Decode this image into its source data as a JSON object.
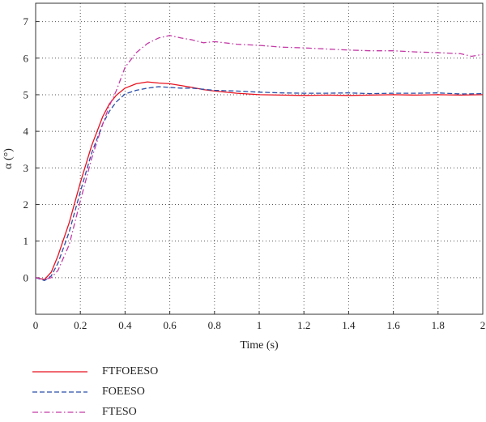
{
  "chart_data": {
    "type": "line",
    "xlabel": "Time (s)",
    "ylabel": "α (°)",
    "xlim": [
      0,
      2
    ],
    "ylim": [
      -1,
      7.5
    ],
    "x_ticks": [
      "0",
      "0.2",
      "0.4",
      "0.6",
      "0.8",
      "1",
      "1.2",
      "1.4",
      "1.6",
      "1.8",
      "2"
    ],
    "y_ticks": [
      "0",
      "1",
      "2",
      "3",
      "4",
      "5",
      "6",
      "7"
    ],
    "grid": true,
    "legend_position": "below",
    "series": [
      {
        "name": "FTFOEESO",
        "color": "#e8121f",
        "dash": "solid",
        "x": [
          0,
          0.04,
          0.07,
          0.1,
          0.15,
          0.2,
          0.25,
          0.3,
          0.33,
          0.36,
          0.4,
          0.45,
          0.5,
          0.55,
          0.6,
          0.65,
          0.7,
          0.75,
          0.8,
          0.9,
          1.0,
          1.1,
          1.2,
          1.3,
          1.4,
          1.5,
          1.6,
          1.7,
          1.8,
          1.9,
          2.0
        ],
        "y": [
          0,
          -0.05,
          0.15,
          0.6,
          1.5,
          2.6,
          3.6,
          4.4,
          4.75,
          4.98,
          5.18,
          5.3,
          5.35,
          5.32,
          5.3,
          5.25,
          5.2,
          5.14,
          5.1,
          5.04,
          5.0,
          4.99,
          4.98,
          4.99,
          4.98,
          4.99,
          5.0,
          4.99,
          5.0,
          4.99,
          5.0
        ]
      },
      {
        "name": "FOEESO",
        "color": "#2a4ea8",
        "dash": "dashed",
        "x": [
          0,
          0.04,
          0.07,
          0.1,
          0.15,
          0.2,
          0.25,
          0.3,
          0.33,
          0.36,
          0.4,
          0.45,
          0.5,
          0.55,
          0.6,
          0.65,
          0.7,
          0.75,
          0.8,
          0.9,
          1.0,
          1.1,
          1.2,
          1.3,
          1.4,
          1.5,
          1.6,
          1.7,
          1.8,
          1.9,
          2.0
        ],
        "y": [
          0,
          -0.08,
          0.05,
          0.4,
          1.25,
          2.35,
          3.4,
          4.2,
          4.55,
          4.8,
          5.02,
          5.12,
          5.18,
          5.22,
          5.2,
          5.18,
          5.18,
          5.15,
          5.12,
          5.1,
          5.07,
          5.05,
          5.04,
          5.04,
          5.05,
          5.03,
          5.04,
          5.04,
          5.05,
          5.02,
          5.03
        ]
      },
      {
        "name": "FTESO",
        "color": "#c43aa6",
        "dash": "dashdot",
        "x": [
          0,
          0.04,
          0.07,
          0.1,
          0.15,
          0.2,
          0.25,
          0.3,
          0.33,
          0.36,
          0.4,
          0.45,
          0.5,
          0.55,
          0.6,
          0.65,
          0.7,
          0.75,
          0.8,
          0.9,
          1.0,
          1.1,
          1.2,
          1.3,
          1.4,
          1.5,
          1.6,
          1.7,
          1.8,
          1.9,
          1.95,
          2.0
        ],
        "y": [
          0,
          -0.05,
          0.0,
          0.2,
          0.9,
          2.1,
          3.25,
          4.2,
          4.7,
          5.1,
          5.75,
          6.15,
          6.4,
          6.55,
          6.62,
          6.55,
          6.5,
          6.42,
          6.45,
          6.38,
          6.35,
          6.3,
          6.28,
          6.25,
          6.22,
          6.2,
          6.2,
          6.17,
          6.15,
          6.12,
          6.05,
          6.1
        ]
      }
    ]
  }
}
